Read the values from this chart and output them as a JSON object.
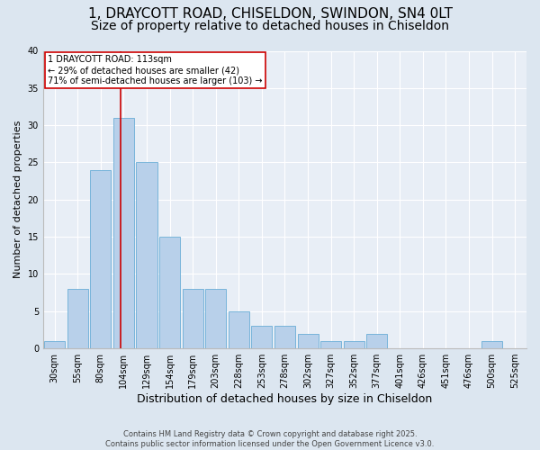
{
  "title_line1": "1, DRAYCOTT ROAD, CHISELDON, SWINDON, SN4 0LT",
  "title_line2": "Size of property relative to detached houses in Chiseldon",
  "xlabel": "Distribution of detached houses by size in Chiseldon",
  "ylabel": "Number of detached properties",
  "categories": [
    "30sqm",
    "55sqm",
    "80sqm",
    "104sqm",
    "129sqm",
    "154sqm",
    "179sqm",
    "203sqm",
    "228sqm",
    "253sqm",
    "278sqm",
    "302sqm",
    "327sqm",
    "352sqm",
    "377sqm",
    "401sqm",
    "426sqm",
    "451sqm",
    "476sqm",
    "500sqm",
    "525sqm"
  ],
  "values": [
    1,
    8,
    24,
    31,
    25,
    15,
    8,
    8,
    5,
    3,
    3,
    2,
    1,
    1,
    2,
    0,
    0,
    0,
    0,
    1,
    0
  ],
  "bar_color": "#b8d0ea",
  "bar_edge_color": "#6aaed6",
  "fig_bg_color": "#dce6f0",
  "ax_bg_color": "#e8eef6",
  "grid_color": "#ffffff",
  "annotation_text_line1": "1 DRAYCOTT ROAD: 113sqm",
  "annotation_text_line2": "← 29% of detached houses are smaller (42)",
  "annotation_text_line3": "71% of semi-detached houses are larger (103) →",
  "vline_color": "#cc0000",
  "vline_x_index": 2.85,
  "ylim": [
    0,
    40
  ],
  "yticks": [
    0,
    5,
    10,
    15,
    20,
    25,
    30,
    35,
    40
  ],
  "footnote_line1": "Contains HM Land Registry data © Crown copyright and database right 2025.",
  "footnote_line2": "Contains public sector information licensed under the Open Government Licence v3.0.",
  "title_fontsize": 11,
  "subtitle_fontsize": 10,
  "xlabel_fontsize": 9,
  "ylabel_fontsize": 8,
  "tick_fontsize": 7,
  "annotation_fontsize": 7,
  "footnote_fontsize": 6
}
